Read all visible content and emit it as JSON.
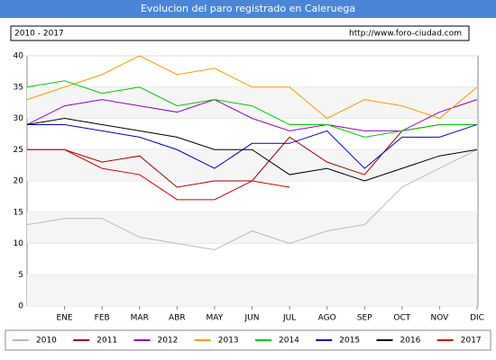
{
  "chart_data": {
    "type": "line",
    "title": "Evolucion del paro registrado en Caleruega",
    "subtitle": "2010 - 2017",
    "source": "http://www.foro-ciudad.com",
    "categories": [
      null,
      "ENE",
      "FEB",
      "MAR",
      "ABR",
      "MAY",
      "JUN",
      "JUL",
      "AGO",
      "SEP",
      "OCT",
      "NOV",
      "DIC"
    ],
    "ylim": [
      0,
      40
    ],
    "yticks": [
      0,
      5,
      10,
      15,
      20,
      25,
      30,
      35,
      40
    ],
    "grid": true,
    "legend": "bottom",
    "series": [
      {
        "name": "2010",
        "color": "#bbbbbb",
        "values": [
          13,
          14,
          14,
          11,
          10,
          9,
          12,
          10,
          12,
          13,
          19,
          22,
          25
        ]
      },
      {
        "name": "2011",
        "color": "#aa0000",
        "values": [
          25,
          25,
          23,
          24,
          19,
          20,
          20,
          27,
          23,
          21,
          28,
          29,
          29
        ]
      },
      {
        "name": "2012",
        "color": "#9900cc",
        "values": [
          29,
          32,
          33,
          32,
          31,
          33,
          30,
          28,
          29,
          28,
          28,
          31,
          33
        ]
      },
      {
        "name": "2013",
        "color": "#ff9900",
        "values": [
          33,
          35,
          37,
          40,
          37,
          38,
          35,
          35,
          30,
          33,
          32,
          30,
          35
        ]
      },
      {
        "name": "2014",
        "color": "#00cc00",
        "values": [
          35,
          36,
          34,
          35,
          32,
          33,
          32,
          29,
          29,
          27,
          28,
          29,
          29
        ]
      },
      {
        "name": "2015",
        "color": "#0000cc",
        "values": [
          29,
          29,
          28,
          27,
          25,
          22,
          26,
          26,
          28,
          22,
          27,
          27,
          29
        ]
      },
      {
        "name": "2016",
        "color": "#000000",
        "values": [
          29,
          30,
          29,
          28,
          27,
          25,
          25,
          21,
          22,
          20,
          22,
          24,
          25
        ]
      },
      {
        "name": "2017",
        "color": "#dd0000",
        "values": [
          25,
          25,
          22,
          21,
          17,
          17,
          20,
          19,
          null,
          null,
          null,
          null,
          null
        ]
      }
    ]
  }
}
